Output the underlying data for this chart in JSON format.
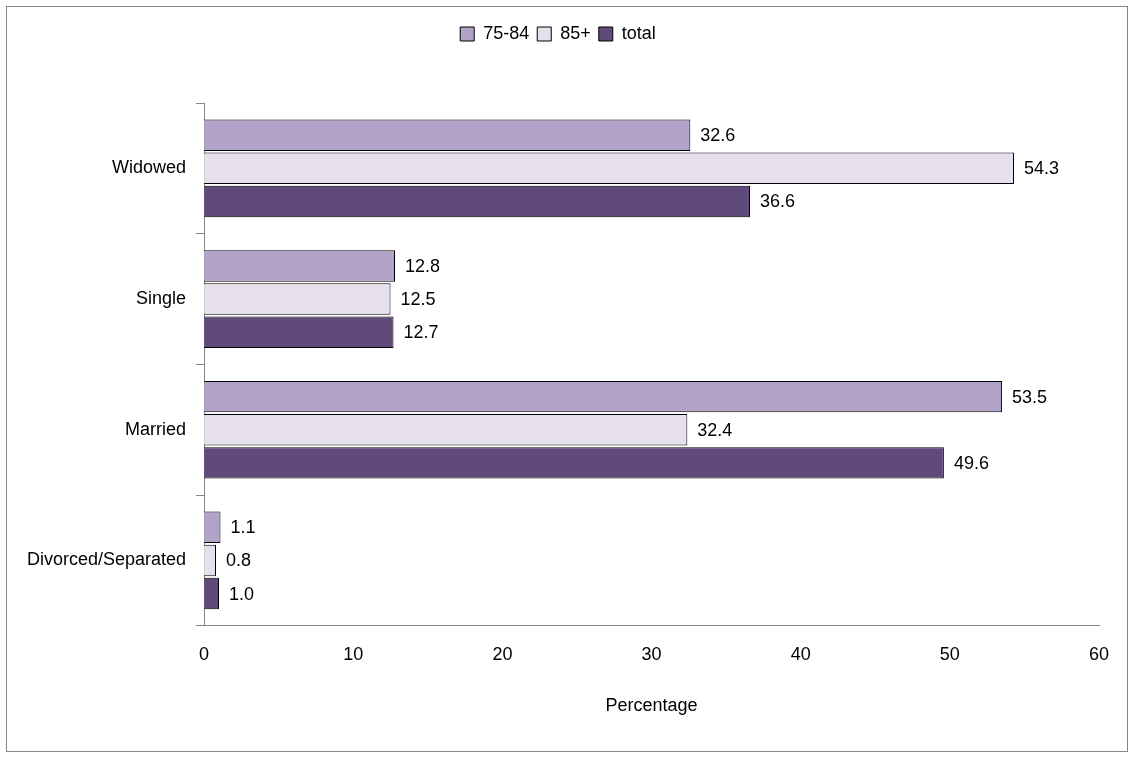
{
  "chart_data": {
    "type": "bar",
    "orientation": "horizontal",
    "xlabel": "Percentage",
    "categories": [
      "Widowed",
      "Single",
      "Married",
      "Divorced/Separated"
    ],
    "series": [
      {
        "name": "75-84",
        "color": "#b3a2c7",
        "values": [
          32.6,
          12.8,
          53.5,
          1.1
        ],
        "value_labels": [
          "32.6",
          "12.8",
          "53.5",
          "1.1"
        ]
      },
      {
        "name": "85+",
        "color": "#e6e0ec",
        "values": [
          54.3,
          12.5,
          32.4,
          0.8
        ],
        "value_labels": [
          "54.3",
          "12.5",
          "32.4",
          "0.8"
        ]
      },
      {
        "name": "total",
        "color": "#604a7b",
        "values": [
          36.6,
          12.7,
          49.6,
          1.0
        ],
        "value_labels": [
          "36.6",
          "12.7",
          "49.6",
          "1.0"
        ]
      }
    ],
    "xlim": [
      0,
      60
    ],
    "xticks": [
      0,
      10,
      20,
      30,
      40,
      50,
      60
    ],
    "grid": false,
    "legend": "top"
  }
}
